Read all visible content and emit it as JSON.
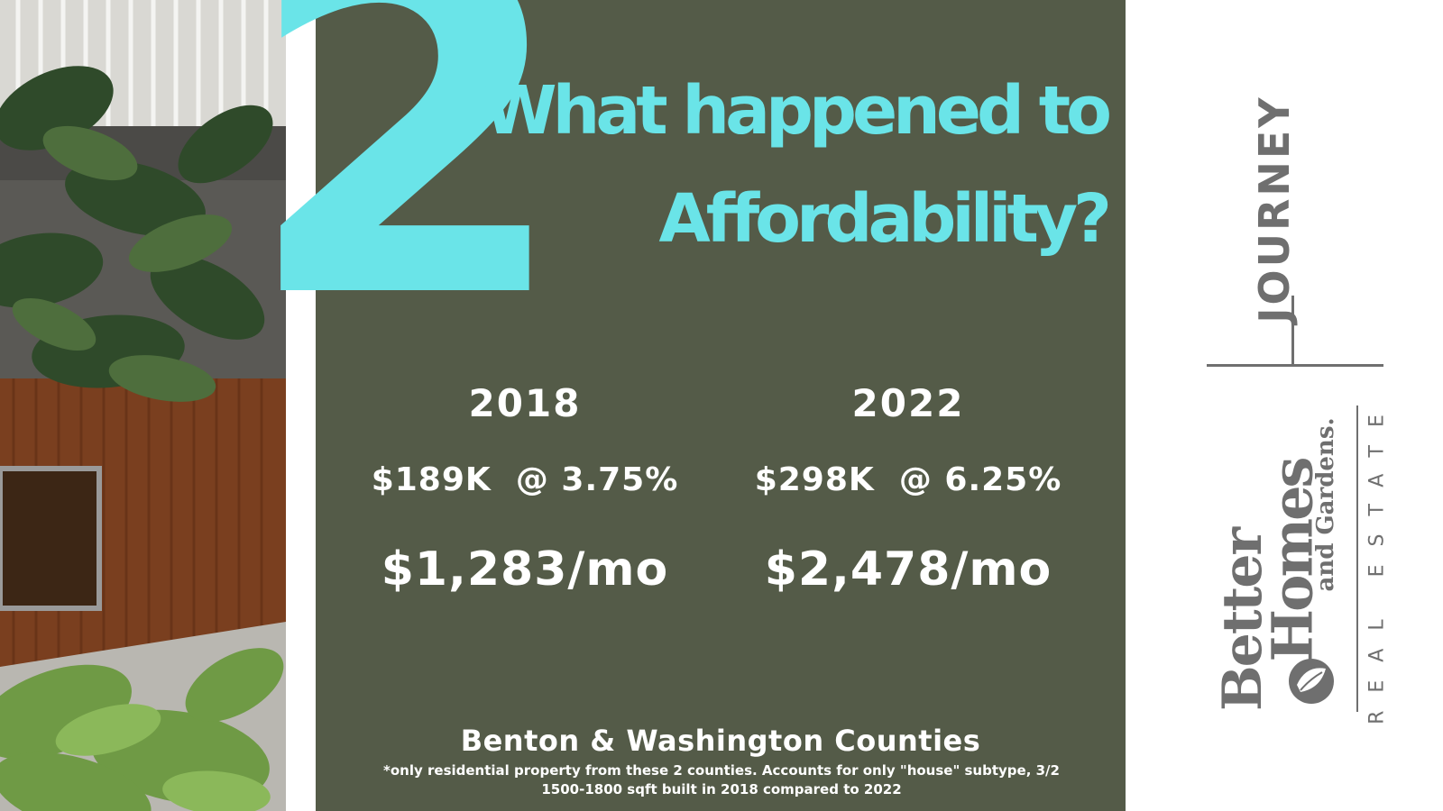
{
  "slide": {
    "big_number": "2",
    "headline_line1": "What happened to",
    "headline_line2": "Affordability?"
  },
  "comparison": [
    {
      "year": "2018",
      "price_rate": "$189K  @ 3.75%",
      "monthly": "$1,283/mo"
    },
    {
      "year": "2022",
      "price_rate": "$298K  @ 6.25%",
      "monthly": "$2,478/mo"
    }
  ],
  "footer": {
    "title": "Benton & Washington Counties",
    "note_line1": "*only residential property from these 2 counties. Accounts for only \"house\" subtype, 3/2",
    "note_line2": "1500-1800 sqft built in 2018 compared to 2022"
  },
  "logo": {
    "journey": "JOURNEY",
    "better": "Better",
    "homes": "Homes",
    "and_gardens": "and Gardens.",
    "real_estate": "REAL ESTATE"
  },
  "colors": {
    "panel": "#545b48",
    "accent": "#6ae4e8",
    "text": "#ffffff",
    "logo_gray": "#6f6f6f"
  },
  "icons": {
    "photo": "building-with-plants-photo",
    "logo_mark": "bhg-leaf-mark-icon"
  }
}
